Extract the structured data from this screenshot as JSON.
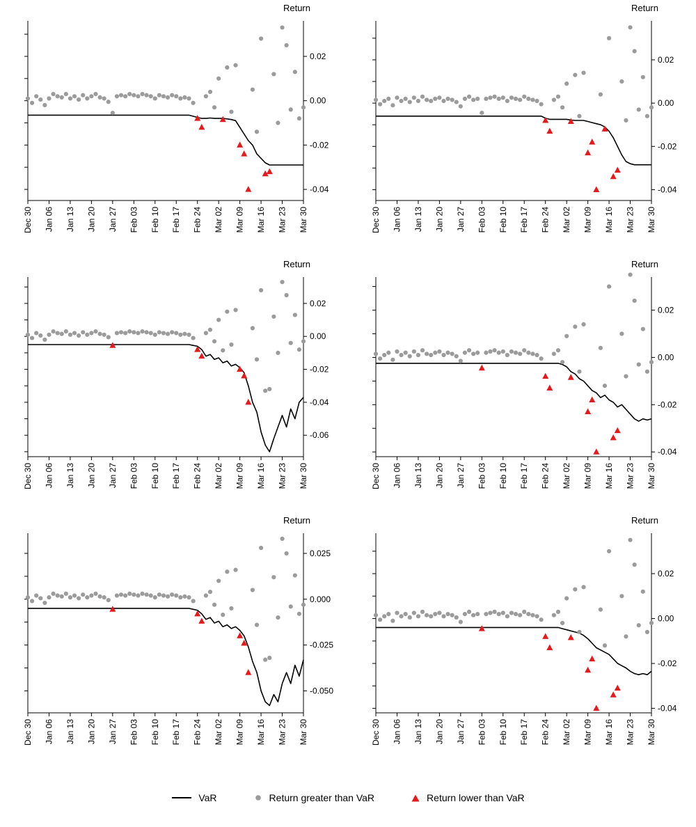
{
  "figure": {
    "axis_title": "Return"
  },
  "legend": {
    "var_label": "VaR",
    "greater_label": "Return greater than VaR",
    "lower_label": "Return lower than VaR"
  },
  "colors": {
    "var_line": "#000000",
    "return_dot": "#9b9b9b",
    "return_triangle": "#e41a1c",
    "axis": "#000000",
    "background": "#ffffff"
  },
  "x_axis": {
    "tick_labels": [
      "Dec 30",
      "Jan 06",
      "Jan 13",
      "Jan 20",
      "Jan 27",
      "Feb 03",
      "Feb 10",
      "Feb 17",
      "Feb 24",
      "Mar 02",
      "Mar 09",
      "Mar 16",
      "Mar 23",
      "Mar 30"
    ],
    "tick_indices": [
      0,
      5,
      10,
      15,
      20,
      25,
      30,
      35,
      40,
      45,
      50,
      55,
      60,
      65
    ]
  },
  "chart_data": [
    {
      "name": "panel-top-left",
      "type": "line+scatter",
      "ylim": [
        -0.045,
        0.036
      ],
      "yticks": [
        0.02,
        0,
        -0.02,
        -0.04
      ],
      "ytick_labels": [
        "0.02",
        "0.00",
        "-0.02",
        "-0.04"
      ],
      "var": [
        -0.0065,
        -0.0065,
        -0.0065,
        -0.0065,
        -0.0065,
        -0.0065,
        -0.0065,
        -0.0065,
        -0.0065,
        -0.0065,
        -0.0065,
        -0.0065,
        -0.0065,
        -0.0065,
        -0.0065,
        -0.0065,
        -0.0065,
        -0.0065,
        -0.0065,
        -0.0065,
        -0.0065,
        -0.0065,
        -0.0065,
        -0.0065,
        -0.0065,
        -0.0065,
        -0.0065,
        -0.0065,
        -0.0065,
        -0.0065,
        -0.0065,
        -0.0065,
        -0.0065,
        -0.0065,
        -0.0065,
        -0.0065,
        -0.0065,
        -0.0065,
        -0.0065,
        -0.007,
        -0.0075,
        -0.008,
        -0.008,
        -0.0078,
        -0.008,
        -0.008,
        -0.008,
        -0.0082,
        -0.0085,
        -0.009,
        -0.012,
        -0.015,
        -0.018,
        -0.02,
        -0.024,
        -0.026,
        -0.028,
        -0.029,
        -0.029,
        -0.029,
        -0.029,
        -0.029,
        -0.029,
        -0.029,
        -0.029,
        -0.029
      ],
      "returns": [
        0.001,
        -0.001,
        0.002,
        0.0005,
        -0.002,
        0.001,
        0.003,
        0.002,
        0.0015,
        0.003,
        0.001,
        0.002,
        0.0005,
        0.0025,
        0.001,
        0.002,
        0.003,
        0.0015,
        0.001,
        -0.0005,
        -0.0055,
        0.002,
        0.0025,
        0.002,
        0.003,
        0.0025,
        0.002,
        0.003,
        0.0025,
        0.002,
        0.001,
        0.0025,
        0.002,
        0.0015,
        0.0025,
        0.002,
        0.001,
        0.0015,
        0.001,
        -0.001,
        -0.008,
        -0.012,
        0.002,
        0.004,
        -0.003,
        0.01,
        -0.0085,
        0.015,
        -0.005,
        0.016,
        -0.02,
        -0.024,
        -0.04,
        0.005,
        -0.014,
        0.028,
        -0.033,
        -0.032,
        0.012,
        -0.01,
        0.033,
        0.025,
        -0.004,
        0.013,
        -0.008,
        -0.003
      ]
    },
    {
      "name": "panel-top-right",
      "type": "line+scatter",
      "ylim": [
        -0.045,
        0.038
      ],
      "yticks": [
        0.02,
        0,
        -0.02,
        -0.04
      ],
      "ytick_labels": [
        "0.02",
        "0.00",
        "-0.02",
        "-0.04"
      ],
      "var": [
        -0.006,
        -0.006,
        -0.006,
        -0.006,
        -0.006,
        -0.006,
        -0.006,
        -0.006,
        -0.006,
        -0.006,
        -0.006,
        -0.006,
        -0.006,
        -0.006,
        -0.006,
        -0.006,
        -0.006,
        -0.006,
        -0.006,
        -0.006,
        -0.006,
        -0.006,
        -0.006,
        -0.006,
        -0.006,
        -0.006,
        -0.006,
        -0.006,
        -0.006,
        -0.006,
        -0.006,
        -0.006,
        -0.006,
        -0.006,
        -0.006,
        -0.006,
        -0.006,
        -0.006,
        -0.006,
        -0.006,
        -0.007,
        -0.0075,
        -0.0075,
        -0.0075,
        -0.0075,
        -0.0075,
        -0.0078,
        -0.008,
        -0.008,
        -0.008,
        -0.0085,
        -0.009,
        -0.0095,
        -0.01,
        -0.011,
        -0.013,
        -0.016,
        -0.02,
        -0.024,
        -0.027,
        -0.028,
        -0.0285,
        -0.0285,
        -0.0285,
        -0.0285,
        -0.0285
      ],
      "returns": [
        0.0015,
        -0.0005,
        0.001,
        0.002,
        -0.001,
        0.0025,
        0.001,
        0.002,
        0.0005,
        0.0025,
        0.001,
        0.003,
        0.0015,
        0.001,
        0.002,
        0.0025,
        0.001,
        0.002,
        0.0015,
        0.0005,
        -0.0015,
        0.002,
        0.003,
        0.0015,
        0.002,
        -0.0045,
        0.002,
        0.0025,
        0.003,
        0.002,
        0.0025,
        0.001,
        0.0025,
        0.002,
        0.0015,
        0.003,
        0.002,
        0.0015,
        0.001,
        -0.0005,
        -0.008,
        -0.013,
        0.0015,
        0.003,
        -0.002,
        0.009,
        -0.0085,
        0.013,
        -0.006,
        0.014,
        -0.023,
        -0.018,
        -0.04,
        0.004,
        -0.012,
        0.03,
        -0.034,
        -0.031,
        0.01,
        -0.008,
        0.035,
        0.024,
        -0.003,
        0.012,
        -0.006,
        -0.002
      ]
    },
    {
      "name": "panel-mid-left",
      "type": "line+scatter",
      "ylim": [
        -0.073,
        0.036
      ],
      "yticks": [
        0.02,
        0,
        -0.02,
        -0.04,
        -0.06
      ],
      "ytick_labels": [
        "0.02",
        "0.00",
        "-0.02",
        "-0.04",
        "-0.06"
      ],
      "var": [
        -0.005,
        -0.005,
        -0.005,
        -0.005,
        -0.005,
        -0.005,
        -0.005,
        -0.005,
        -0.005,
        -0.005,
        -0.005,
        -0.005,
        -0.005,
        -0.005,
        -0.005,
        -0.005,
        -0.005,
        -0.005,
        -0.005,
        -0.005,
        -0.005,
        -0.005,
        -0.005,
        -0.005,
        -0.005,
        -0.005,
        -0.005,
        -0.005,
        -0.005,
        -0.005,
        -0.005,
        -0.005,
        -0.005,
        -0.005,
        -0.005,
        -0.005,
        -0.005,
        -0.005,
        -0.005,
        -0.0055,
        -0.006,
        -0.008,
        -0.012,
        -0.011,
        -0.014,
        -0.013,
        -0.016,
        -0.015,
        -0.018,
        -0.017,
        -0.019,
        -0.022,
        -0.03,
        -0.04,
        -0.046,
        -0.058,
        -0.066,
        -0.07,
        -0.062,
        -0.055,
        -0.048,
        -0.055,
        -0.044,
        -0.05,
        -0.04,
        -0.037
      ],
      "returns": [
        0.001,
        -0.001,
        0.002,
        0.0005,
        -0.002,
        0.001,
        0.003,
        0.002,
        0.0015,
        0.003,
        0.001,
        0.002,
        0.0005,
        0.0025,
        0.001,
        0.002,
        0.003,
        0.0015,
        0.001,
        -0.0005,
        -0.0055,
        0.002,
        0.0025,
        0.002,
        0.003,
        0.0025,
        0.002,
        0.003,
        0.0025,
        0.002,
        0.001,
        0.0025,
        0.002,
        0.0015,
        0.0025,
        0.002,
        0.001,
        0.0015,
        0.001,
        -0.001,
        -0.008,
        -0.012,
        0.002,
        0.004,
        -0.003,
        0.01,
        -0.0085,
        0.015,
        -0.005,
        0.016,
        -0.02,
        -0.024,
        -0.04,
        0.005,
        -0.014,
        0.028,
        -0.033,
        -0.032,
        0.012,
        -0.01,
        0.033,
        0.025,
        -0.004,
        0.013,
        -0.008,
        -0.003
      ]
    },
    {
      "name": "panel-mid-right",
      "type": "line+scatter",
      "ylim": [
        -0.042,
        0.034
      ],
      "yticks": [
        0.02,
        0,
        -0.02,
        -0.04
      ],
      "ytick_labels": [
        "0.02",
        "0.00",
        "-0.02",
        "-0.04"
      ],
      "var": [
        -0.0025,
        -0.0025,
        -0.0025,
        -0.0025,
        -0.0025,
        -0.0025,
        -0.0025,
        -0.0025,
        -0.0025,
        -0.0025,
        -0.0025,
        -0.0025,
        -0.0025,
        -0.0025,
        -0.0025,
        -0.0025,
        -0.0025,
        -0.0025,
        -0.0025,
        -0.0025,
        -0.0025,
        -0.0025,
        -0.0025,
        -0.0025,
        -0.0025,
        -0.0025,
        -0.0025,
        -0.0025,
        -0.0025,
        -0.0025,
        -0.0025,
        -0.0025,
        -0.0025,
        -0.0025,
        -0.0025,
        -0.0025,
        -0.0025,
        -0.0025,
        -0.0025,
        -0.0025,
        -0.0025,
        -0.0025,
        -0.0025,
        -0.0025,
        -0.003,
        -0.004,
        -0.006,
        -0.007,
        -0.009,
        -0.01,
        -0.012,
        -0.014,
        -0.015,
        -0.017,
        -0.016,
        -0.018,
        -0.019,
        -0.021,
        -0.02,
        -0.022,
        -0.024,
        -0.026,
        -0.027,
        -0.026,
        -0.0265,
        -0.026
      ],
      "returns": [
        0.0015,
        -0.0005,
        0.001,
        0.002,
        -0.001,
        0.0025,
        0.001,
        0.002,
        0.0005,
        0.0025,
        0.001,
        0.003,
        0.0015,
        0.001,
        0.002,
        0.0025,
        0.001,
        0.002,
        0.0015,
        0.0005,
        -0.0015,
        0.002,
        0.003,
        0.0015,
        0.002,
        -0.0045,
        0.002,
        0.0025,
        0.003,
        0.002,
        0.0025,
        0.001,
        0.0025,
        0.002,
        0.0015,
        0.003,
        0.002,
        0.0015,
        0.001,
        -0.0005,
        -0.008,
        -0.013,
        0.0015,
        0.003,
        -0.002,
        0.009,
        -0.0085,
        0.013,
        -0.006,
        0.014,
        -0.023,
        -0.018,
        -0.04,
        0.004,
        -0.012,
        0.03,
        -0.034,
        -0.031,
        0.01,
        -0.008,
        0.035,
        0.024,
        -0.003,
        0.012,
        -0.006,
        -0.002
      ]
    },
    {
      "name": "panel-bottom-left",
      "type": "line+scatter",
      "ylim": [
        -0.062,
        0.036
      ],
      "yticks": [
        0.025,
        0,
        -0.025,
        -0.05
      ],
      "ytick_labels": [
        "0.025",
        "0.000",
        "-0.025",
        "-0.050"
      ],
      "var": [
        -0.005,
        -0.005,
        -0.005,
        -0.005,
        -0.005,
        -0.005,
        -0.005,
        -0.005,
        -0.005,
        -0.005,
        -0.005,
        -0.005,
        -0.005,
        -0.005,
        -0.005,
        -0.005,
        -0.005,
        -0.005,
        -0.005,
        -0.005,
        -0.005,
        -0.005,
        -0.005,
        -0.005,
        -0.005,
        -0.005,
        -0.005,
        -0.005,
        -0.005,
        -0.005,
        -0.005,
        -0.005,
        -0.005,
        -0.005,
        -0.005,
        -0.005,
        -0.005,
        -0.005,
        -0.005,
        -0.0055,
        -0.006,
        -0.008,
        -0.011,
        -0.01,
        -0.013,
        -0.012,
        -0.015,
        -0.014,
        -0.016,
        -0.015,
        -0.017,
        -0.02,
        -0.026,
        -0.034,
        -0.04,
        -0.05,
        -0.056,
        -0.058,
        -0.052,
        -0.056,
        -0.046,
        -0.04,
        -0.046,
        -0.036,
        -0.042,
        -0.033
      ],
      "returns": [
        0.001,
        -0.001,
        0.002,
        0.0005,
        -0.002,
        0.001,
        0.003,
        0.002,
        0.0015,
        0.003,
        0.001,
        0.002,
        0.0005,
        0.0025,
        0.001,
        0.002,
        0.003,
        0.0015,
        0.001,
        -0.0005,
        -0.0055,
        0.002,
        0.0025,
        0.002,
        0.003,
        0.0025,
        0.002,
        0.003,
        0.0025,
        0.002,
        0.001,
        0.0025,
        0.002,
        0.0015,
        0.0025,
        0.002,
        0.001,
        0.0015,
        0.001,
        -0.001,
        -0.008,
        -0.012,
        0.002,
        0.004,
        -0.003,
        0.01,
        -0.0085,
        0.015,
        -0.005,
        0.016,
        -0.02,
        -0.024,
        -0.04,
        0.005,
        -0.014,
        0.028,
        -0.033,
        -0.032,
        0.012,
        -0.01,
        0.033,
        0.025,
        -0.004,
        0.013,
        -0.008,
        -0.003
      ]
    },
    {
      "name": "panel-bottom-right",
      "type": "line+scatter",
      "ylim": [
        -0.042,
        0.038
      ],
      "yticks": [
        0.02,
        0,
        -0.02,
        -0.04
      ],
      "ytick_labels": [
        "0.02",
        "0.00",
        "-0.02",
        "-0.04"
      ],
      "var": [
        -0.004,
        -0.004,
        -0.004,
        -0.004,
        -0.004,
        -0.004,
        -0.004,
        -0.004,
        -0.004,
        -0.004,
        -0.004,
        -0.004,
        -0.004,
        -0.004,
        -0.004,
        -0.004,
        -0.004,
        -0.004,
        -0.004,
        -0.004,
        -0.004,
        -0.004,
        -0.004,
        -0.004,
        -0.004,
        -0.004,
        -0.004,
        -0.004,
        -0.004,
        -0.004,
        -0.004,
        -0.004,
        -0.004,
        -0.004,
        -0.004,
        -0.004,
        -0.004,
        -0.004,
        -0.004,
        -0.004,
        -0.004,
        -0.004,
        -0.004,
        -0.004,
        -0.0045,
        -0.005,
        -0.0055,
        -0.006,
        -0.0065,
        -0.0075,
        -0.009,
        -0.011,
        -0.013,
        -0.014,
        -0.015,
        -0.016,
        -0.018,
        -0.02,
        -0.021,
        -0.022,
        -0.0235,
        -0.0245,
        -0.025,
        -0.0245,
        -0.025,
        -0.0235
      ],
      "returns": [
        0.0015,
        -0.0005,
        0.001,
        0.002,
        -0.001,
        0.0025,
        0.001,
        0.002,
        0.0005,
        0.0025,
        0.001,
        0.003,
        0.0015,
        0.001,
        0.002,
        0.0025,
        0.001,
        0.002,
        0.0015,
        0.0005,
        -0.0015,
        0.002,
        0.003,
        0.0015,
        0.002,
        -0.0045,
        0.002,
        0.0025,
        0.003,
        0.002,
        0.0025,
        0.001,
        0.0025,
        0.002,
        0.0015,
        0.003,
        0.002,
        0.0015,
        0.001,
        -0.0005,
        -0.008,
        -0.013,
        0.0015,
        0.003,
        -0.002,
        0.009,
        -0.0085,
        0.013,
        -0.006,
        0.014,
        -0.023,
        -0.018,
        -0.04,
        0.004,
        -0.012,
        0.03,
        -0.034,
        -0.031,
        0.01,
        -0.008,
        0.035,
        0.024,
        -0.003,
        0.012,
        -0.006,
        -0.002
      ]
    }
  ]
}
